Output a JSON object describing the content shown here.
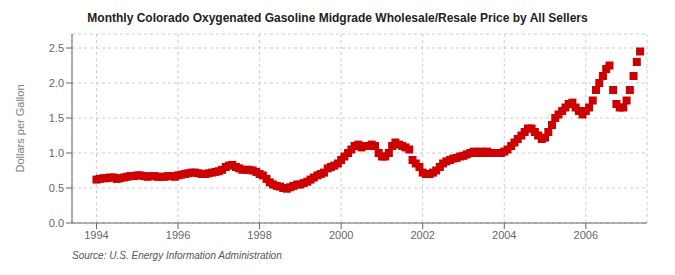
{
  "chart_data": {
    "type": "scatter",
    "title": "Monthly Colorado Oxygenated Gasoline Midgrade Wholesale/Resale Price by All Sellers",
    "ylabel": "Dollars per Gallon",
    "annotations": [
      "Source: U.S. Energy Information Administration"
    ],
    "color": "#cc0000",
    "marker": "square",
    "grid": true,
    "xlim": [
      1993.4,
      2007.5
    ],
    "xticks": [
      1994,
      1996,
      1998,
      2000,
      2002,
      2004,
      2006
    ],
    "ylim": [
      0.0,
      2.7
    ],
    "yticks": [
      {
        "value": 0.0,
        "label": "0.0"
      },
      0.5,
      {
        "value": 1.0,
        "label": "1.0"
      },
      1.5,
      {
        "value": 2.0,
        "label": "2.0"
      },
      2.5
    ],
    "x": [
      1994.0,
      1994.08,
      1994.17,
      1994.25,
      1994.33,
      1994.42,
      1994.5,
      1994.58,
      1994.67,
      1994.75,
      1994.83,
      1994.92,
      1995.0,
      1995.08,
      1995.17,
      1995.25,
      1995.33,
      1995.42,
      1995.5,
      1995.58,
      1995.67,
      1995.75,
      1995.83,
      1995.92,
      1996.0,
      1996.08,
      1996.17,
      1996.25,
      1996.33,
      1996.42,
      1996.5,
      1996.58,
      1996.67,
      1996.75,
      1996.83,
      1996.92,
      1997.0,
      1997.08,
      1997.17,
      1997.25,
      1997.33,
      1997.42,
      1997.5,
      1997.58,
      1997.67,
      1997.75,
      1997.83,
      1997.92,
      1998.0,
      1998.08,
      1998.17,
      1998.25,
      1998.33,
      1998.42,
      1998.5,
      1998.58,
      1998.67,
      1998.75,
      1998.83,
      1998.92,
      1999.0,
      1999.08,
      1999.17,
      1999.25,
      1999.33,
      1999.42,
      1999.5,
      1999.58,
      1999.67,
      1999.75,
      1999.83,
      1999.92,
      2000.0,
      2000.08,
      2000.17,
      2000.25,
      2000.33,
      2000.42,
      2000.5,
      2000.58,
      2000.67,
      2000.75,
      2000.83,
      2000.92,
      2001.0,
      2001.08,
      2001.17,
      2001.25,
      2001.33,
      2001.42,
      2001.5,
      2001.58,
      2001.67,
      2001.75,
      2001.83,
      2001.92,
      2002.0,
      2002.08,
      2002.17,
      2002.25,
      2002.33,
      2002.42,
      2002.5,
      2002.58,
      2002.67,
      2002.75,
      2002.83,
      2002.92,
      2003.0,
      2003.08,
      2003.17,
      2003.25,
      2003.33,
      2003.42,
      2003.5,
      2003.58,
      2003.67,
      2003.75,
      2003.83,
      2003.92,
      2004.0,
      2004.08,
      2004.17,
      2004.25,
      2004.33,
      2004.42,
      2004.5,
      2004.58,
      2004.67,
      2004.75,
      2004.83,
      2004.92,
      2005.0,
      2005.08,
      2005.17,
      2005.25,
      2005.33,
      2005.42,
      2005.5,
      2005.58,
      2005.67,
      2005.75,
      2005.83,
      2005.92,
      2006.0,
      2006.08,
      2006.17,
      2006.25,
      2006.33,
      2006.42,
      2006.5,
      2006.58,
      2006.67,
      2006.75,
      2006.83,
      2006.92,
      2007.0,
      2007.08,
      2007.17,
      2007.25,
      2007.33
    ],
    "values": [
      0.62,
      0.63,
      0.64,
      0.64,
      0.65,
      0.65,
      0.63,
      0.64,
      0.65,
      0.66,
      0.67,
      0.67,
      0.68,
      0.68,
      0.67,
      0.66,
      0.67,
      0.67,
      0.66,
      0.66,
      0.66,
      0.67,
      0.67,
      0.66,
      0.68,
      0.69,
      0.7,
      0.71,
      0.72,
      0.72,
      0.71,
      0.7,
      0.7,
      0.71,
      0.72,
      0.73,
      0.74,
      0.76,
      0.8,
      0.82,
      0.83,
      0.8,
      0.78,
      0.76,
      0.76,
      0.76,
      0.75,
      0.73,
      0.7,
      0.68,
      0.63,
      0.58,
      0.55,
      0.53,
      0.52,
      0.5,
      0.49,
      0.51,
      0.53,
      0.55,
      0.55,
      0.57,
      0.59,
      0.62,
      0.65,
      0.68,
      0.7,
      0.72,
      0.78,
      0.8,
      0.82,
      0.85,
      0.9,
      0.95,
      1.0,
      1.05,
      1.1,
      1.12,
      1.08,
      1.1,
      1.1,
      1.12,
      1.1,
      1.0,
      0.95,
      0.95,
      1.0,
      1.1,
      1.15,
      1.12,
      1.1,
      1.08,
      1.05,
      0.9,
      0.85,
      0.8,
      0.72,
      0.7,
      0.7,
      0.72,
      0.75,
      0.8,
      0.85,
      0.88,
      0.9,
      0.92,
      0.93,
      0.95,
      0.96,
      0.98,
      1.0,
      1.02,
      1.0,
      1.02,
      1.0,
      1.02,
      1.0,
      1.0,
      1.0,
      1.0,
      1.02,
      1.05,
      1.1,
      1.15,
      1.2,
      1.25,
      1.3,
      1.35,
      1.35,
      1.3,
      1.25,
      1.2,
      1.22,
      1.3,
      1.4,
      1.5,
      1.55,
      1.6,
      1.65,
      1.7,
      1.72,
      1.65,
      1.6,
      1.55,
      1.6,
      1.65,
      1.75,
      1.9,
      2.0,
      2.1,
      2.2,
      2.25,
      1.9,
      1.7,
      1.65,
      1.65,
      1.75,
      1.9,
      2.1,
      2.3,
      2.45
    ]
  }
}
